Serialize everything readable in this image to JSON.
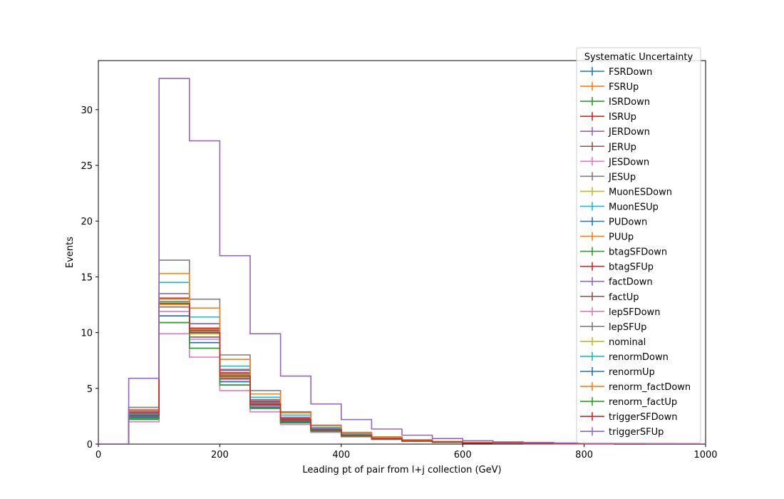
{
  "chart_data": {
    "type": "line",
    "style": "step-histogram",
    "xlabel": "Leading pt of pair from l+j collection (GeV)",
    "ylabel": "Events",
    "xlim": [
      0,
      1000
    ],
    "ylim": [
      0,
      34.4
    ],
    "xticks": [
      0,
      200,
      400,
      600,
      800,
      1000
    ],
    "yticks": [
      0,
      5,
      10,
      15,
      20,
      25,
      30
    ],
    "grid": false,
    "legend_title": "Systematic Uncertainty",
    "legend_position": "top-right",
    "bin_edges": [
      0,
      50,
      100,
      150,
      200,
      250,
      300,
      350,
      400,
      450,
      500,
      550,
      600,
      650,
      700,
      750,
      800,
      850,
      900,
      950,
      1000
    ],
    "series": [
      {
        "name": "FSRDown",
        "color": "#1f77b4",
        "values": [
          0,
          2.6,
          12.6,
          10.0,
          6.1,
          3.6,
          2.2,
          1.3,
          0.8,
          0.5,
          0.3,
          0.2,
          0.1,
          0.1,
          0.05,
          0.03,
          0.02,
          0.01,
          0.01,
          0.0
        ]
      },
      {
        "name": "FSRUp",
        "color": "#ff7f0e",
        "values": [
          0,
          2.7,
          12.7,
          10.1,
          6.2,
          3.7,
          2.2,
          1.3,
          0.8,
          0.5,
          0.3,
          0.2,
          0.1,
          0.1,
          0.05,
          0.03,
          0.02,
          0.01,
          0.01,
          0.0
        ]
      },
      {
        "name": "ISRDown",
        "color": "#2ca02c",
        "values": [
          0,
          2.6,
          12.7,
          10.0,
          6.1,
          3.6,
          2.2,
          1.3,
          0.8,
          0.5,
          0.3,
          0.2,
          0.1,
          0.1,
          0.05,
          0.03,
          0.02,
          0.01,
          0.01,
          0.0
        ]
      },
      {
        "name": "ISRUp",
        "color": "#d62728",
        "values": [
          0,
          2.7,
          12.8,
          10.2,
          6.2,
          3.7,
          2.2,
          1.3,
          0.8,
          0.5,
          0.3,
          0.2,
          0.1,
          0.1,
          0.05,
          0.03,
          0.02,
          0.01,
          0.01,
          0.0
        ]
      },
      {
        "name": "JERDown",
        "color": "#9467bd",
        "values": [
          0,
          2.7,
          12.8,
          10.1,
          6.2,
          3.7,
          2.2,
          1.3,
          0.8,
          0.5,
          0.3,
          0.2,
          0.1,
          0.1,
          0.05,
          0.03,
          0.02,
          0.01,
          0.01,
          0.0
        ]
      },
      {
        "name": "JERUp",
        "color": "#8c564b",
        "values": [
          0,
          2.7,
          13.0,
          10.3,
          6.3,
          3.8,
          2.3,
          1.3,
          0.8,
          0.5,
          0.3,
          0.2,
          0.1,
          0.1,
          0.05,
          0.03,
          0.02,
          0.01,
          0.01,
          0.0
        ]
      },
      {
        "name": "JESDown",
        "color": "#e377c2",
        "values": [
          0,
          2.4,
          11.9,
          9.4,
          5.8,
          3.4,
          2.1,
          1.2,
          0.75,
          0.45,
          0.28,
          0.17,
          0.1,
          0.08,
          0.05,
          0.03,
          0.02,
          0.01,
          0.01,
          0.0
        ]
      },
      {
        "name": "JESUp",
        "color": "#7f7f7f",
        "values": [
          0,
          2.9,
          13.5,
          10.8,
          6.7,
          4.0,
          2.4,
          1.4,
          0.85,
          0.55,
          0.32,
          0.2,
          0.12,
          0.1,
          0.05,
          0.03,
          0.02,
          0.01,
          0.01,
          0.0
        ]
      },
      {
        "name": "MuonESDown",
        "color": "#bcbd22",
        "values": [
          0,
          2.6,
          12.7,
          10.1,
          6.2,
          3.7,
          2.2,
          1.3,
          0.8,
          0.5,
          0.3,
          0.2,
          0.1,
          0.1,
          0.05,
          0.03,
          0.02,
          0.01,
          0.01,
          0.0
        ]
      },
      {
        "name": "MuonESUp",
        "color": "#17becf",
        "values": [
          0,
          2.7,
          12.8,
          10.1,
          6.2,
          3.7,
          2.2,
          1.3,
          0.8,
          0.5,
          0.3,
          0.2,
          0.1,
          0.1,
          0.05,
          0.03,
          0.02,
          0.01,
          0.01,
          0.0
        ]
      },
      {
        "name": "PUDown",
        "color": "#1f77b4",
        "values": [
          0,
          2.5,
          11.5,
          9.1,
          5.6,
          3.3,
          2.0,
          1.2,
          0.75,
          0.45,
          0.28,
          0.17,
          0.1,
          0.08,
          0.05,
          0.03,
          0.02,
          0.01,
          0.01,
          0.0
        ]
      },
      {
        "name": "PUUp",
        "color": "#ff7f0e",
        "values": [
          0,
          2.8,
          13.0,
          10.3,
          6.3,
          3.8,
          2.3,
          1.3,
          0.8,
          0.5,
          0.3,
          0.2,
          0.1,
          0.1,
          0.05,
          0.03,
          0.02,
          0.01,
          0.01,
          0.0
        ]
      },
      {
        "name": "btagSFDown",
        "color": "#2ca02c",
        "values": [
          0,
          2.2,
          10.9,
          8.6,
          5.3,
          3.2,
          1.9,
          1.1,
          0.7,
          0.43,
          0.26,
          0.16,
          0.1,
          0.07,
          0.04,
          0.03,
          0.02,
          0.01,
          0.01,
          0.0
        ]
      },
      {
        "name": "btagSFUp",
        "color": "#d62728",
        "values": [
          0,
          2.8,
          13.1,
          10.4,
          6.4,
          3.8,
          2.3,
          1.4,
          0.85,
          0.52,
          0.31,
          0.2,
          0.12,
          0.09,
          0.05,
          0.03,
          0.02,
          0.01,
          0.01,
          0.0
        ]
      },
      {
        "name": "factDown",
        "color": "#9467bd",
        "values": [
          0,
          3.0,
          13.5,
          10.8,
          6.6,
          3.9,
          2.4,
          1.4,
          0.85,
          0.53,
          0.32,
          0.2,
          0.12,
          0.09,
          0.05,
          0.03,
          0.02,
          0.01,
          0.01,
          0.0
        ]
      },
      {
        "name": "factUp",
        "color": "#8c564b",
        "values": [
          0,
          2.4,
          12.3,
          9.6,
          5.9,
          3.5,
          2.1,
          1.25,
          0.78,
          0.48,
          0.29,
          0.18,
          0.11,
          0.08,
          0.05,
          0.03,
          0.02,
          0.01,
          0.01,
          0.0
        ]
      },
      {
        "name": "lepSFDown",
        "color": "#e377c2",
        "values": [
          0,
          2.0,
          9.9,
          7.8,
          4.8,
          2.9,
          1.75,
          1.05,
          0.65,
          0.4,
          0.24,
          0.15,
          0.09,
          0.07,
          0.04,
          0.02,
          0.015,
          0.01,
          0.01,
          0.0
        ]
      },
      {
        "name": "lepSFUp",
        "color": "#7f7f7f",
        "values": [
          0,
          3.3,
          16.5,
          13.0,
          8.0,
          4.8,
          2.9,
          1.7,
          1.05,
          0.65,
          0.39,
          0.24,
          0.15,
          0.11,
          0.06,
          0.04,
          0.025,
          0.015,
          0.01,
          0.0
        ]
      },
      {
        "name": "nominal",
        "color": "#bcbd22",
        "values": [
          0,
          2.6,
          12.5,
          9.9,
          6.0,
          3.6,
          2.2,
          1.3,
          0.8,
          0.5,
          0.3,
          0.2,
          0.1,
          0.1,
          0.05,
          0.03,
          0.02,
          0.01,
          0.01,
          0.0
        ]
      },
      {
        "name": "renormDown",
        "color": "#17becf",
        "values": [
          0,
          3.1,
          14.5,
          11.4,
          7.0,
          4.2,
          2.6,
          1.5,
          0.92,
          0.57,
          0.34,
          0.21,
          0.13,
          0.1,
          0.05,
          0.03,
          0.02,
          0.01,
          0.01,
          0.0
        ]
      },
      {
        "name": "renormUp",
        "color": "#1f77b4",
        "values": [
          0,
          2.4,
          11.5,
          9.1,
          5.6,
          3.3,
          2.0,
          1.2,
          0.74,
          0.46,
          0.28,
          0.17,
          0.1,
          0.08,
          0.04,
          0.03,
          0.02,
          0.01,
          0.01,
          0.0
        ]
      },
      {
        "name": "renorm_factDown",
        "color": "#ff7f0e",
        "values": [
          0,
          3.1,
          15.3,
          12.2,
          7.6,
          4.5,
          2.8,
          1.65,
          1.0,
          0.62,
          0.37,
          0.23,
          0.14,
          0.1,
          0.06,
          0.04,
          0.02,
          0.015,
          0.01,
          0.0
        ]
      },
      {
        "name": "renorm_factUp",
        "color": "#2ca02c",
        "values": [
          0,
          2.3,
          10.9,
          8.6,
          5.3,
          3.2,
          1.9,
          1.15,
          0.7,
          0.44,
          0.26,
          0.16,
          0.1,
          0.07,
          0.04,
          0.03,
          0.02,
          0.01,
          0.01,
          0.0
        ]
      },
      {
        "name": "triggerSFDown",
        "color": "#d62728",
        "values": [
          0,
          2.6,
          12.6,
          10.0,
          6.1,
          3.6,
          2.2,
          1.3,
          0.8,
          0.5,
          0.3,
          0.2,
          0.1,
          0.1,
          0.05,
          0.03,
          0.02,
          0.01,
          0.01,
          0.0
        ]
      },
      {
        "name": "triggerSFUp",
        "color": "#9467bd",
        "values": [
          0,
          5.9,
          32.8,
          27.2,
          16.9,
          9.9,
          6.1,
          3.6,
          2.2,
          1.35,
          0.8,
          0.5,
          0.3,
          0.2,
          0.15,
          0.1,
          0.07,
          0.05,
          0.03,
          0.02
        ]
      }
    ]
  }
}
